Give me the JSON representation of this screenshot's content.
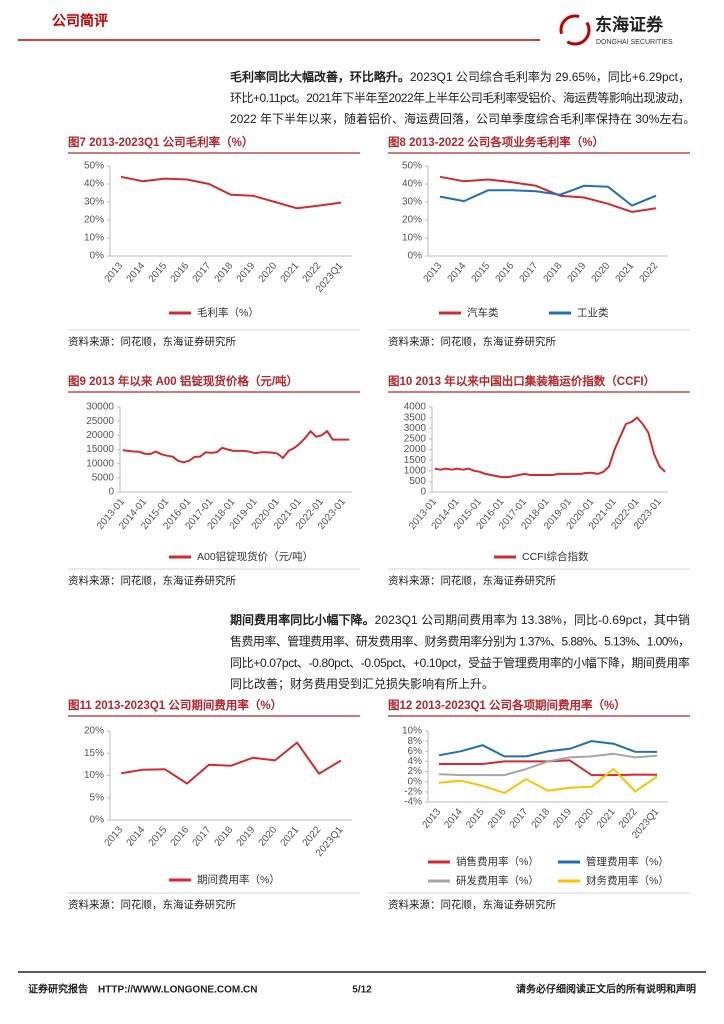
{
  "header": {
    "section": "公司简评",
    "logo_name": "东海证券",
    "logo_sub": "DONGHAI SECURITIES"
  },
  "paragraphs": [
    {
      "lead": "毛利率同比大幅改善，环比略升。",
      "lines": [
        "2023Q1 公司综合毛利率为 29.65%，同比+6.29pct，",
        "环比+0.11pct。2021年下半年至2022年上半年公司毛利率受铝价、海运费等影响出现波动，",
        "2022 年下半年以来，随着铝价、海运费回落，公司单季度综合毛利率保持在 30%左右。"
      ]
    },
    {
      "lead": "期间费用率同比小幅下降。",
      "lines": [
        "2023Q1 公司期间费用率为 13.38%，同比-0.69pct，其中销",
        "售费用率、管理费用率、研发费用率、财务费用率分别为 1.37%、5.88%、5.13%、1.00%，",
        "同比+0.07pct、-0.80pct、-0.05pct、+0.10pct，受益于管理费用率的小幅下降，期间费用率",
        "同比改善；财务费用受到汇兑损失影响有所上升。"
      ]
    }
  ],
  "chart_data": [
    {
      "type": "line",
      "title": "图7 2013-2023Q1 公司毛利率（%）",
      "categories": [
        "2013",
        "2014",
        "2015",
        "2016",
        "2017",
        "2018",
        "2019",
        "2020",
        "2021",
        "2022",
        "2023Q1"
      ],
      "series": [
        {
          "name": "毛利率（%）",
          "color": "#d42a2f",
          "values": [
            44,
            41.5,
            43,
            42.5,
            40,
            34,
            33.5,
            30,
            26.5,
            28,
            29.65
          ]
        }
      ],
      "ylim": [
        0,
        50
      ],
      "yticks": [
        {
          "value": 0,
          "label": "0%"
        },
        {
          "value": 10,
          "label": "10%"
        },
        {
          "value": 20,
          "label": "20%"
        },
        {
          "value": 30,
          "label": "30%"
        },
        {
          "value": 40,
          "label": "40%"
        },
        {
          "value": 50,
          "label": "50%"
        }
      ],
      "legend": "bottom",
      "grid": false,
      "source": "资料来源：同花顺，东海证券研究所"
    },
    {
      "type": "line",
      "title": "图8 2013-2022 公司各项业务毛利率（%）",
      "categories": [
        "2013",
        "2014",
        "2015",
        "2016",
        "2017",
        "2018",
        "2019",
        "2020",
        "2021",
        "2022"
      ],
      "series": [
        {
          "name": "汽车类",
          "color": "#d42a2f",
          "values": [
            44,
            41.5,
            42.5,
            41,
            39,
            33.5,
            32.5,
            29,
            24.5,
            26.5
          ]
        },
        {
          "name": "工业类",
          "color": "#1f6fb5",
          "values": [
            33,
            30.5,
            36.5,
            36.5,
            36,
            34,
            39,
            38.5,
            28,
            33.5
          ]
        }
      ],
      "ylim": [
        0,
        50
      ],
      "yticks": [
        {
          "value": 0,
          "label": "0%"
        },
        {
          "value": 10,
          "label": "10%"
        },
        {
          "value": 20,
          "label": "20%"
        },
        {
          "value": 30,
          "label": "30%"
        },
        {
          "value": 40,
          "label": "40%"
        },
        {
          "value": 50,
          "label": "50%"
        }
      ],
      "legend": "bottom",
      "grid": false,
      "source": "资料来源：同花顺，东海证券研究所"
    },
    {
      "type": "line",
      "title": "图9 2013 年以来 A00 铝锭现货价格（元/吨）",
      "categories": [
        "2013-01",
        null,
        null,
        null,
        "2014-01",
        null,
        null,
        null,
        "2015-01",
        null,
        null,
        null,
        "2016-01",
        null,
        null,
        null,
        "2017-01",
        null,
        null,
        null,
        "2018-01",
        null,
        null,
        null,
        "2019-01",
        null,
        null,
        null,
        "2020-01",
        null,
        null,
        null,
        "2021-01",
        null,
        null,
        null,
        "2022-01",
        null,
        null,
        null,
        "2023-01",
        null
      ],
      "series": [
        {
          "name": "A00铝锭现货价（元/吨）",
          "color": "#d42a2f",
          "values": [
            14800,
            14500,
            14300,
            14200,
            13500,
            13400,
            14300,
            13300,
            12800,
            12500,
            11000,
            10500,
            11000,
            12400,
            12500,
            14000,
            13800,
            14000,
            15600,
            15000,
            14500,
            14500,
            14500,
            14200,
            13700,
            14000,
            14000,
            13900,
            13600,
            12000,
            14500,
            15500,
            17000,
            19000,
            21500,
            19500,
            20000,
            21500,
            18500,
            18500,
            18500,
            18500
          ]
        }
      ],
      "ylim": [
        0,
        30000
      ],
      "yticks": [
        0,
        5000,
        10000,
        15000,
        20000,
        25000,
        30000
      ],
      "legend": "bottom",
      "grid": false,
      "source": "资料来源：同花顺，东海证券研究所"
    },
    {
      "type": "line",
      "title": "图10 2013 年以来中国出口集装箱运价指数（CCFI）",
      "categories": [
        "2013-01",
        null,
        null,
        null,
        "2014-01",
        null,
        null,
        null,
        "2015-01",
        null,
        null,
        null,
        "2016-01",
        null,
        null,
        null,
        "2017-01",
        null,
        null,
        null,
        "2018-01",
        null,
        null,
        null,
        "2019-01",
        null,
        null,
        null,
        "2020-01",
        null,
        null,
        null,
        "2021-01",
        null,
        null,
        null,
        "2022-01",
        null,
        null,
        null,
        "2023-01",
        null
      ],
      "series": [
        {
          "name": "CCFI综合指数",
          "color": "#d42a2f",
          "values": [
            1100,
            1050,
            1100,
            1050,
            1100,
            1050,
            1100,
            1000,
            950,
            850,
            800,
            750,
            700,
            700,
            750,
            800,
            850,
            800,
            800,
            800,
            800,
            800,
            850,
            850,
            850,
            850,
            850,
            900,
            900,
            850,
            950,
            1200,
            2000,
            2600,
            3200,
            3300,
            3500,
            3200,
            2800,
            1800,
            1200,
            950
          ]
        }
      ],
      "ylim": [
        0,
        4000
      ],
      "yticks": [
        0,
        500,
        1000,
        1500,
        2000,
        2500,
        3000,
        3500,
        4000
      ],
      "legend": "bottom",
      "grid": false,
      "source": "资料来源：同花顺，东海证券研究所"
    },
    {
      "type": "line",
      "title": "图11 2013-2023Q1 公司期间费用率（%）",
      "categories": [
        "2013",
        "2014",
        "2015",
        "2016",
        "2017",
        "2018",
        "2019",
        "2020",
        "2021",
        "2022",
        "2023Q1"
      ],
      "series": [
        {
          "name": "期间费用率（%）",
          "color": "#d42a2f",
          "values": [
            10.5,
            11.3,
            11.4,
            8.2,
            12.4,
            12.2,
            14,
            13.4,
            17.4,
            10.4,
            13.38
          ]
        }
      ],
      "ylim": [
        0,
        20
      ],
      "yticks": [
        {
          "value": 0,
          "label": "0%"
        },
        {
          "value": 5,
          "label": "5%"
        },
        {
          "value": 10,
          "label": "10%"
        },
        {
          "value": 15,
          "label": "15%"
        },
        {
          "value": 20,
          "label": "20%"
        }
      ],
      "legend": "bottom",
      "grid": false,
      "source": "资料来源：同花顺，东海证券研究所"
    },
    {
      "type": "line",
      "title": "图12 2013-2023Q1 公司各项期间费用率（%）",
      "categories": [
        "2013",
        "2014",
        "2015",
        "2016",
        "2017",
        "2018",
        "2019",
        "2020",
        "2021",
        "2022",
        "2023Q1"
      ],
      "series": [
        {
          "name": "销售费用率（%）",
          "color": "#d42a2f",
          "values": [
            3.5,
            3.5,
            3.5,
            4,
            4,
            4,
            4.2,
            1.3,
            1.3,
            1.4,
            1.37
          ]
        },
        {
          "name": "管理费用率（%）",
          "color": "#1f6fb5",
          "values": [
            5.2,
            6,
            7.2,
            5,
            5,
            6,
            6.5,
            8,
            7.5,
            5.9,
            5.88
          ]
        },
        {
          "name": "研发费用率（%）",
          "color": "#a6a6a6",
          "values": [
            1.5,
            1.3,
            1.3,
            1.3,
            2.5,
            4,
            4.8,
            5,
            5.5,
            4.8,
            5.13
          ]
        },
        {
          "name": "财务费用率（%）",
          "color": "#ffc000",
          "values": [
            -0.2,
            0.2,
            -0.8,
            -2.2,
            0.5,
            -1.8,
            -1.2,
            -1,
            2.5,
            -1.9,
            1.0
          ]
        }
      ],
      "ylim": [
        -4,
        10
      ],
      "yticks": [
        {
          "value": -4,
          "label": "-4%"
        },
        {
          "value": -2,
          "label": "-2%"
        },
        {
          "value": 0,
          "label": "0%"
        },
        {
          "value": 2,
          "label": "2%"
        },
        {
          "value": 4,
          "label": "4%"
        },
        {
          "value": 6,
          "label": "6%"
        },
        {
          "value": 8,
          "label": "8%"
        },
        {
          "value": 10,
          "label": "10%"
        }
      ],
      "legend": "bottom",
      "grid": false,
      "source": "资料来源：同花顺，东海证券研究所"
    }
  ],
  "footer": {
    "left": "证券研究报告",
    "url": "HTTP://WWW.LONGONE.COM.CN",
    "page": "5/12",
    "right": "请务必仔细阅读正文后的所有说明和声明"
  }
}
